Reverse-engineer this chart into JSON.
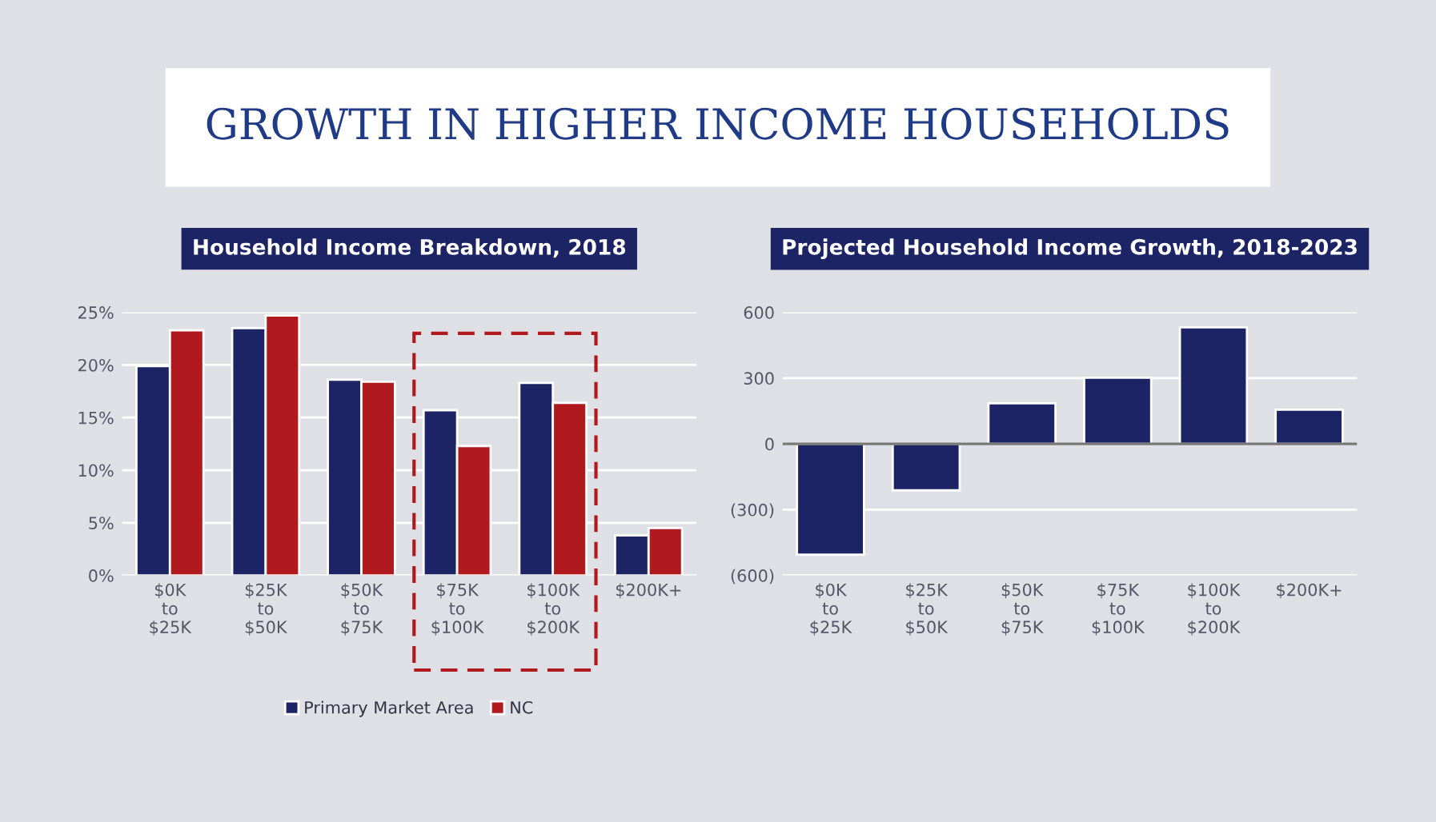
{
  "chart_data": [
    {
      "type": "bar",
      "title": "Household Income Breakdown, 2018",
      "annotations": [
        "GROWTH IN HIGHER INCOME HOUSEHOLDS"
      ],
      "categories": [
        "$0K\nto\n$25K",
        "$25K\nto\n$50K",
        "$50K\nto\n$75K",
        "$75K\nto\n$100K",
        "$100K\nto\n$200K",
        "$200K+"
      ],
      "series": [
        {
          "name": "Primary Market Area",
          "color": "#1c2466",
          "values": [
            19.9,
            23.5,
            18.6,
            15.7,
            18.3,
            3.8
          ]
        },
        {
          "name": "NC",
          "color": "#b0191e",
          "values": [
            23.3,
            24.7,
            18.4,
            12.3,
            16.4,
            4.5
          ]
        }
      ],
      "ylim": [
        0,
        25
      ],
      "yticks": [
        {
          "value": 0,
          "label": "0%"
        },
        {
          "value": 5,
          "label": "5%"
        },
        {
          "value": 10,
          "label": "10%"
        },
        {
          "value": 15,
          "label": "15%"
        },
        {
          "value": 20,
          "label": "20%"
        },
        {
          "value": 25,
          "label": "25%"
        }
      ],
      "grid": "y",
      "legend": "bottom"
    },
    {
      "type": "bar",
      "title": "Projected Household Income Growth, 2018-2023",
      "categories": [
        "$0K\nto\n$25K",
        "$25K\nto\n$50K",
        "$50K\nto\n$75K",
        "$75K\nto\n$100K",
        "$100K\nto\n$200K",
        "$200K+"
      ],
      "series": [
        {
          "color": "#1c2466",
          "values": [
            -505,
            -212,
            185,
            302,
            532,
            156
          ]
        }
      ],
      "ylim": [
        -600,
        600
      ],
      "yticks": [
        {
          "value": -600,
          "label": "(600)"
        },
        {
          "value": -300,
          "label": "(300)"
        },
        0,
        300,
        600
      ],
      "grid": "y"
    }
  ]
}
